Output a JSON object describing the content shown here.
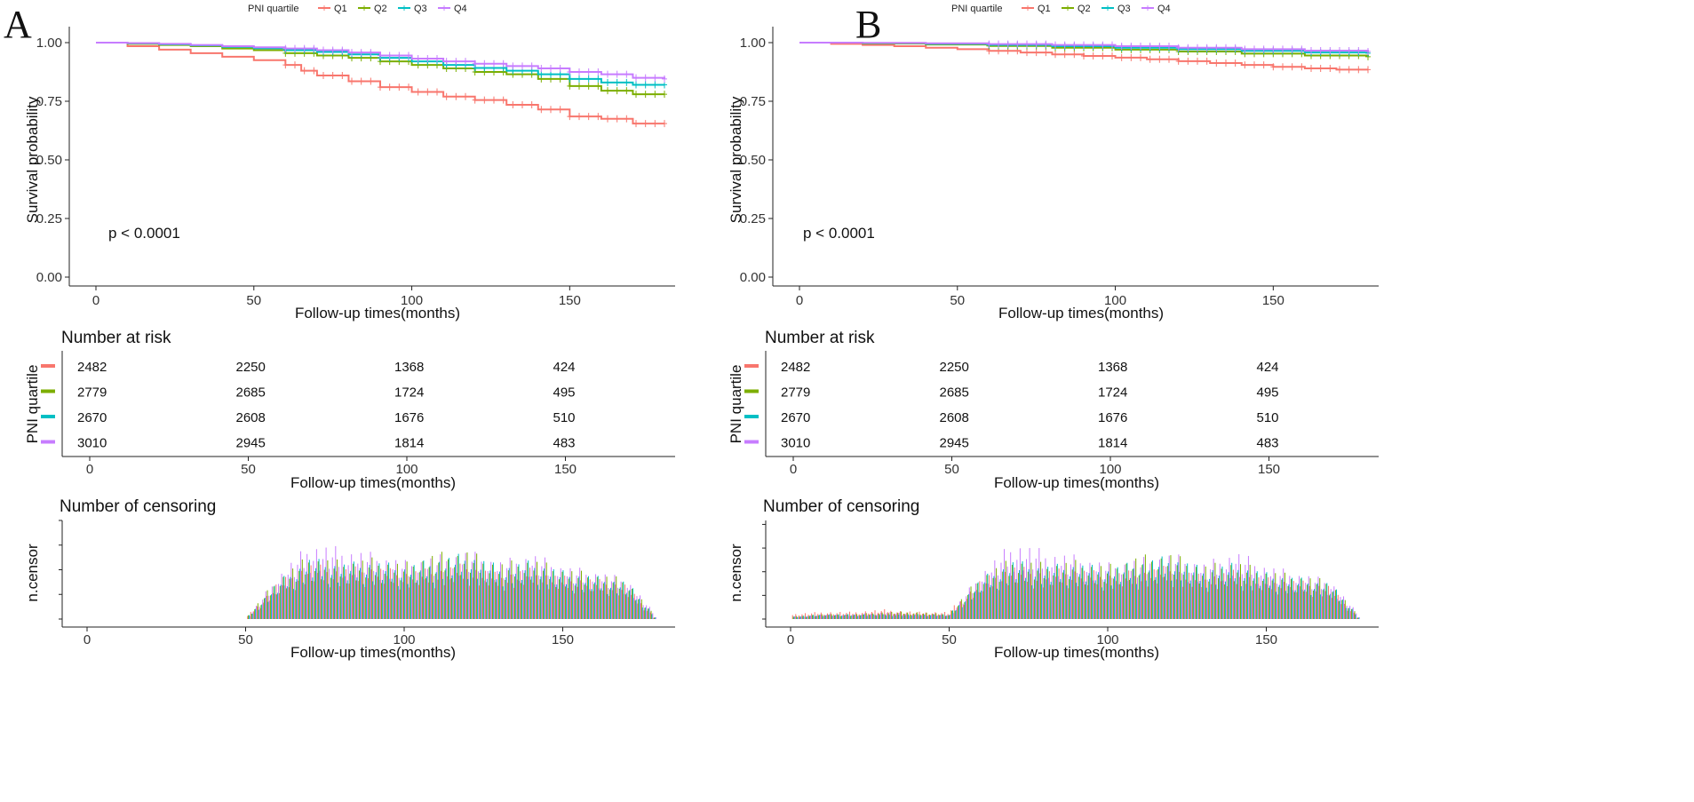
{
  "legend": {
    "title": "PNI quartile",
    "entries": [
      "Q1",
      "Q2",
      "Q3",
      "Q4"
    ]
  },
  "colors": {
    "Q1": "#F8766D",
    "Q2": "#7CAE00",
    "Q3": "#00BFC4",
    "Q4": "#C77CFF"
  },
  "chart_data": [
    {
      "panel": "A",
      "type": "line",
      "title": "",
      "xlabel": "Follow-up times(months)",
      "ylabel": "Survival probability",
      "xlim": [
        0,
        180
      ],
      "ylim": [
        0,
        1
      ],
      "xticks": [
        0,
        50,
        100,
        150
      ],
      "yticks": [
        "0.00",
        "0.25",
        "0.50",
        "0.75",
        "1.00"
      ],
      "annotation": "p < 0.0001",
      "series": [
        {
          "name": "Q1",
          "x": [
            0,
            10,
            20,
            30,
            40,
            50,
            60,
            65,
            70,
            80,
            90,
            100,
            110,
            120,
            130,
            140,
            150,
            160,
            170,
            180
          ],
          "y": [
            1.0,
            0.985,
            0.97,
            0.955,
            0.94,
            0.925,
            0.905,
            0.88,
            0.86,
            0.835,
            0.81,
            0.79,
            0.77,
            0.755,
            0.735,
            0.715,
            0.685,
            0.675,
            0.655,
            0.655
          ]
        },
        {
          "name": "Q2",
          "x": [
            0,
            10,
            20,
            30,
            40,
            50,
            60,
            70,
            80,
            90,
            100,
            110,
            120,
            130,
            140,
            150,
            160,
            170,
            180
          ],
          "y": [
            1.0,
            0.995,
            0.99,
            0.985,
            0.975,
            0.968,
            0.955,
            0.945,
            0.935,
            0.92,
            0.905,
            0.89,
            0.875,
            0.865,
            0.845,
            0.815,
            0.795,
            0.78,
            0.78
          ]
        },
        {
          "name": "Q3",
          "x": [
            0,
            10,
            20,
            30,
            40,
            50,
            60,
            70,
            80,
            90,
            100,
            110,
            120,
            130,
            140,
            150,
            160,
            170,
            180
          ],
          "y": [
            1.0,
            0.997,
            0.993,
            0.988,
            0.982,
            0.976,
            0.968,
            0.96,
            0.95,
            0.935,
            0.92,
            0.905,
            0.892,
            0.88,
            0.865,
            0.845,
            0.83,
            0.82,
            0.82
          ]
        },
        {
          "name": "Q4",
          "x": [
            0,
            10,
            20,
            30,
            40,
            50,
            60,
            70,
            80,
            90,
            100,
            110,
            120,
            130,
            140,
            150,
            160,
            170,
            180
          ],
          "y": [
            1.0,
            0.998,
            0.995,
            0.99,
            0.985,
            0.98,
            0.975,
            0.968,
            0.958,
            0.945,
            0.932,
            0.92,
            0.91,
            0.9,
            0.89,
            0.875,
            0.865,
            0.85,
            0.845
          ]
        }
      ]
    },
    {
      "panel": "B",
      "type": "line",
      "title": "",
      "xlabel": "Follow-up times(months)",
      "ylabel": "Survival probability",
      "xlim": [
        0,
        180
      ],
      "ylim": [
        0,
        1
      ],
      "xticks": [
        0,
        50,
        100,
        150
      ],
      "yticks": [
        "0.00",
        "0.25",
        "0.50",
        "0.75",
        "1.00"
      ],
      "annotation": "p < 0.0001",
      "series": [
        {
          "name": "Q1",
          "x": [
            0,
            10,
            20,
            30,
            40,
            50,
            60,
            70,
            80,
            90,
            100,
            110,
            120,
            130,
            140,
            150,
            160,
            170,
            180
          ],
          "y": [
            1.0,
            0.995,
            0.99,
            0.985,
            0.978,
            0.972,
            0.965,
            0.958,
            0.95,
            0.943,
            0.936,
            0.929,
            0.921,
            0.913,
            0.905,
            0.897,
            0.89,
            0.885,
            0.885
          ]
        },
        {
          "name": "Q2",
          "x": [
            0,
            20,
            40,
            60,
            80,
            100,
            120,
            140,
            160,
            180
          ],
          "y": [
            1.0,
            0.996,
            0.992,
            0.986,
            0.978,
            0.97,
            0.962,
            0.953,
            0.945,
            0.94
          ]
        },
        {
          "name": "Q3",
          "x": [
            0,
            20,
            40,
            60,
            80,
            100,
            120,
            140,
            160,
            180
          ],
          "y": [
            1.0,
            0.998,
            0.995,
            0.99,
            0.985,
            0.978,
            0.972,
            0.965,
            0.958,
            0.955
          ]
        },
        {
          "name": "Q4",
          "x": [
            0,
            20,
            40,
            60,
            80,
            100,
            120,
            140,
            160,
            180
          ],
          "y": [
            1.0,
            0.999,
            0.997,
            0.994,
            0.99,
            0.985,
            0.978,
            0.972,
            0.966,
            0.962
          ]
        }
      ]
    },
    {
      "panel": "A",
      "type": "table",
      "title": "Number at risk",
      "xlabel": "Follow-up times(months)",
      "ylabel": "PNI quartile",
      "time_points": [
        0,
        50,
        100,
        150
      ],
      "xticks": [
        0,
        50,
        100,
        150
      ],
      "rows": [
        {
          "name": "Q1",
          "values": [
            2482,
            2250,
            1368,
            424
          ]
        },
        {
          "name": "Q2",
          "values": [
            2779,
            2685,
            1724,
            495
          ]
        },
        {
          "name": "Q3",
          "values": [
            2670,
            2608,
            1676,
            510
          ]
        },
        {
          "name": "Q4",
          "values": [
            3010,
            2945,
            1814,
            483
          ]
        }
      ]
    },
    {
      "panel": "B",
      "type": "table",
      "title": "Number at risk",
      "xlabel": "Follow-up times(months)",
      "ylabel": "PNI quartile",
      "time_points": [
        0,
        50,
        100,
        150
      ],
      "xticks": [
        0,
        50,
        100,
        150
      ],
      "rows": [
        {
          "name": "Q1",
          "values": [
            2482,
            2250,
            1368,
            424
          ]
        },
        {
          "name": "Q2",
          "values": [
            2779,
            2685,
            1724,
            495
          ]
        },
        {
          "name": "Q3",
          "values": [
            2670,
            2608,
            1676,
            510
          ]
        },
        {
          "name": "Q4",
          "values": [
            3010,
            2945,
            1814,
            483
          ]
        }
      ]
    },
    {
      "panel": "A",
      "type": "bar",
      "title": "Number of censoring",
      "xlabel": "Follow-up times(months)",
      "ylabel": "n.censor",
      "xticks": [
        0,
        50,
        100,
        150
      ],
      "ylim": [
        0,
        48
      ],
      "series": [
        {
          "name": "Q1",
          "x": [
            0,
            10,
            20,
            30,
            40,
            50,
            60,
            70,
            80,
            90,
            100,
            110,
            120,
            130,
            140,
            150,
            160,
            170,
            180
          ],
          "values": [
            0,
            0,
            0,
            0,
            0,
            0,
            14,
            22,
            20,
            21,
            19,
            20,
            22,
            18,
            20,
            17,
            16,
            14,
            0
          ]
        },
        {
          "name": "Q2",
          "x": [
            0,
            10,
            20,
            30,
            40,
            50,
            60,
            70,
            80,
            90,
            100,
            110,
            120,
            130,
            140,
            150,
            160,
            170,
            180
          ],
          "values": [
            0,
            0,
            0,
            0,
            0,
            0,
            16,
            25,
            23,
            24,
            22,
            26,
            27,
            22,
            24,
            20,
            18,
            16,
            0
          ]
        },
        {
          "name": "Q3",
          "x": [
            0,
            10,
            20,
            30,
            40,
            50,
            60,
            70,
            80,
            90,
            100,
            110,
            120,
            130,
            140,
            150,
            160,
            170,
            180
          ],
          "values": [
            0,
            0,
            0,
            0,
            0,
            0,
            15,
            24,
            22,
            23,
            21,
            24,
            26,
            21,
            23,
            19,
            17,
            15,
            0
          ]
        },
        {
          "name": "Q4",
          "x": [
            0,
            10,
            20,
            30,
            40,
            50,
            60,
            70,
            80,
            90,
            100,
            110,
            120,
            130,
            140,
            150,
            160,
            170,
            180
          ],
          "values": [
            0,
            0,
            0,
            0,
            0,
            0,
            18,
            30,
            28,
            26,
            23,
            25,
            27,
            23,
            26,
            21,
            19,
            16,
            0
          ]
        }
      ]
    },
    {
      "panel": "B",
      "type": "bar",
      "title": "Number of censoring",
      "xlabel": "Follow-up times(months)",
      "ylabel": "n.censor",
      "xticks": [
        0,
        50,
        100,
        150
      ],
      "ylim": [
        0,
        50
      ],
      "series": [
        {
          "name": "Q1",
          "x": [
            0,
            10,
            20,
            30,
            40,
            50,
            60,
            70,
            80,
            90,
            100,
            110,
            120,
            130,
            140,
            150,
            160,
            170,
            180
          ],
          "values": [
            2,
            3,
            3,
            4,
            3,
            3,
            16,
            22,
            20,
            21,
            19,
            20,
            22,
            18,
            20,
            17,
            16,
            14,
            0
          ]
        },
        {
          "name": "Q2",
          "x": [
            0,
            10,
            20,
            30,
            40,
            50,
            60,
            70,
            80,
            90,
            100,
            110,
            120,
            130,
            140,
            150,
            160,
            170,
            180
          ],
          "values": [
            1,
            2,
            2,
            3,
            3,
            2,
            18,
            25,
            23,
            24,
            22,
            26,
            27,
            22,
            24,
            20,
            18,
            16,
            0
          ]
        },
        {
          "name": "Q3",
          "x": [
            0,
            10,
            20,
            30,
            40,
            50,
            60,
            70,
            80,
            90,
            100,
            110,
            120,
            130,
            140,
            150,
            160,
            170,
            180
          ],
          "values": [
            1,
            2,
            2,
            2,
            2,
            2,
            17,
            24,
            22,
            23,
            21,
            24,
            26,
            21,
            23,
            19,
            17,
            15,
            0
          ]
        },
        {
          "name": "Q4",
          "x": [
            0,
            10,
            20,
            30,
            40,
            50,
            60,
            70,
            80,
            90,
            100,
            110,
            120,
            130,
            140,
            150,
            160,
            170,
            180
          ],
          "values": [
            1,
            2,
            2,
            3,
            2,
            2,
            20,
            32,
            28,
            26,
            23,
            25,
            27,
            23,
            28,
            22,
            19,
            16,
            0
          ]
        }
      ]
    }
  ]
}
